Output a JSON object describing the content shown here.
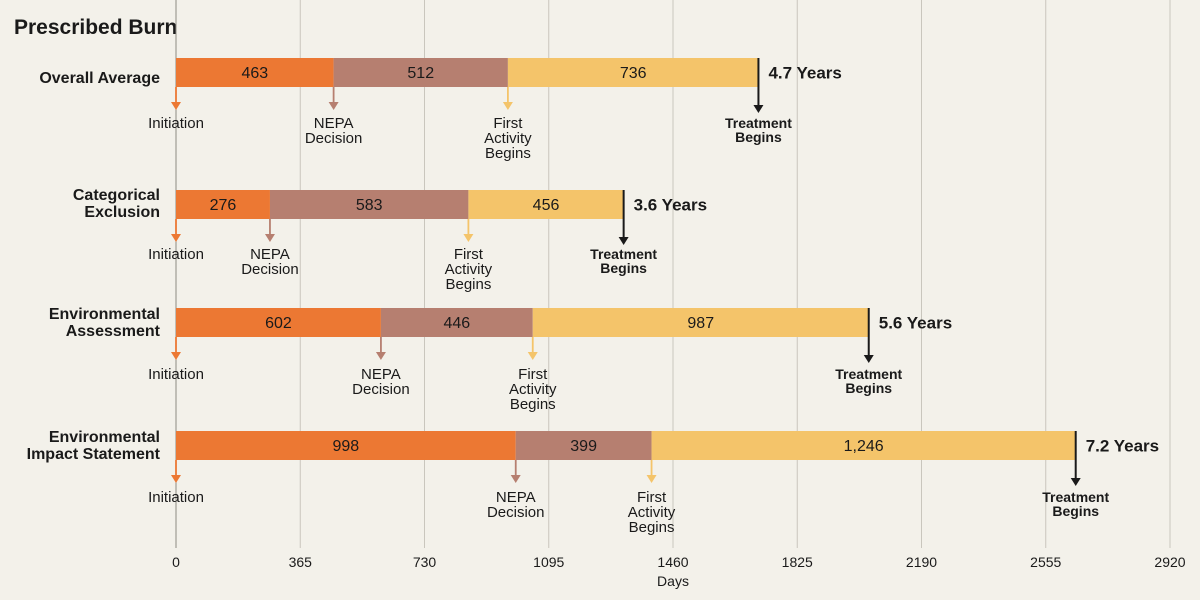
{
  "chart_data": {
    "type": "bar",
    "orientation": "horizontal-stacked",
    "title": "Prescribed Burn",
    "xlabel": "Days",
    "ylabel": "",
    "xlim": [
      0,
      2920
    ],
    "xticks": [
      "0",
      "365",
      "730",
      "1095",
      "1460",
      "1825",
      "2190",
      "2555",
      "2920"
    ],
    "grid": true,
    "colors": [
      "#ec7833",
      "#b67f70",
      "#f4c46a"
    ],
    "marker_colors": [
      "#ec7833",
      "#b67f70",
      "#f4c46a",
      "#1a1a1a"
    ],
    "phases": [
      "Initiation to NEPA Decision",
      "NEPA Decision to First Activity",
      "First Activity to Treatment"
    ],
    "milestone_labels": [
      "Initiation",
      "NEPA\nDecision",
      "First\nActivity\nBegins",
      "Treatment\nBegins"
    ],
    "categories": [
      {
        "label": "Overall Average",
        "values": [
          463,
          512,
          736
        ],
        "value_labels": [
          "463",
          "512",
          "736"
        ],
        "total_label": "4.7 Years"
      },
      {
        "label": "Categorical\nExclusion",
        "values": [
          276,
          583,
          456
        ],
        "value_labels": [
          "276",
          "583",
          "456"
        ],
        "total_label": "3.6 Years"
      },
      {
        "label": "Environmental\nAssessment",
        "values": [
          602,
          446,
          987
        ],
        "value_labels": [
          "602",
          "446",
          "987"
        ],
        "total_label": "5.6 Years"
      },
      {
        "label": "Environmental\nImpact Statement",
        "values": [
          998,
          399,
          1246
        ],
        "value_labels": [
          "998",
          "399",
          "1,246"
        ],
        "total_label": "7.2 Years"
      }
    ]
  }
}
